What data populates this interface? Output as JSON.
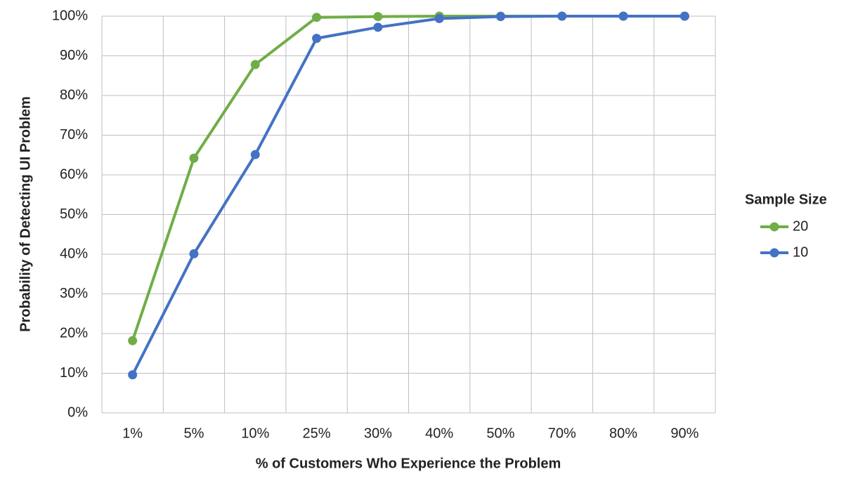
{
  "chart_data": {
    "type": "line",
    "x_label": "% of Customers Who Experience the Problem",
    "y_label": "Probability of Detecting UI Problem",
    "legend_title": "Sample Size",
    "legend_position": "right",
    "grid": true,
    "categories": [
      "1%",
      "5%",
      "10%",
      "25%",
      "30%",
      "40%",
      "50%",
      "70%",
      "80%",
      "90%"
    ],
    "series": [
      {
        "name": "20",
        "color": "#70ad47",
        "values": [
          18.2,
          64.2,
          87.8,
          99.7,
          99.9,
          100,
          100,
          100,
          100,
          100
        ]
      },
      {
        "name": "10",
        "color": "#4472c4",
        "values": [
          9.6,
          40.1,
          65.1,
          94.4,
          97.2,
          99.4,
          99.9,
          100,
          100,
          100
        ]
      }
    ],
    "ylim": [
      0,
      100
    ],
    "yticks": [
      {
        "value": 0,
        "label": "0%"
      },
      {
        "value": 10,
        "label": "10%"
      },
      {
        "value": 20,
        "label": "20%"
      },
      {
        "value": 30,
        "label": "30%"
      },
      {
        "value": 40,
        "label": "40%"
      },
      {
        "value": 50,
        "label": "50%"
      },
      {
        "value": 60,
        "label": "60%"
      },
      {
        "value": 70,
        "label": "70%"
      },
      {
        "value": 80,
        "label": "80%"
      },
      {
        "value": 90,
        "label": "90%"
      },
      {
        "value": 100,
        "label": "100%"
      }
    ]
  }
}
